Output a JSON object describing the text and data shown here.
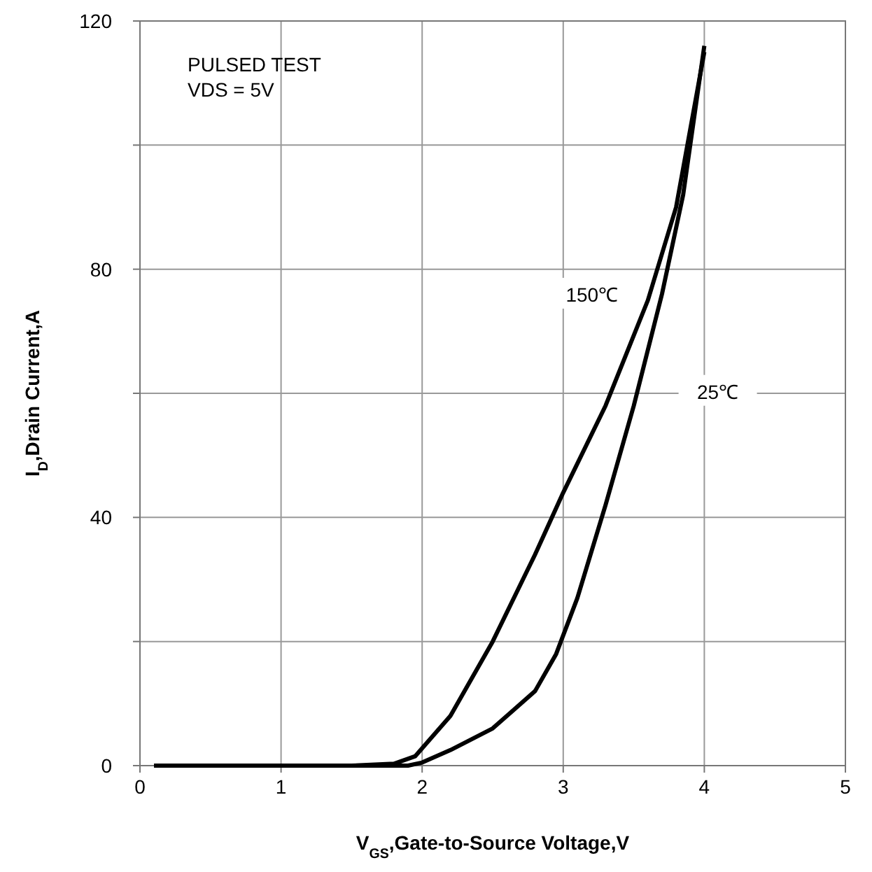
{
  "chart_data": {
    "type": "line",
    "xlabel": "V$_{GS}$,Gate-to-Source Voltage,V",
    "ylabel": "I$_{D}$,Drain Current,A",
    "x": [
      0.1,
      1.5,
      1.8,
      1.95,
      2.2,
      2.5,
      2.8,
      3,
      3.3,
      3.6,
      3.8,
      4
    ],
    "series": [
      {
        "name": "150℃",
        "color": "#000000",
        "values": [
          0,
          0,
          0.3,
          1.5,
          8,
          20,
          34,
          44,
          58,
          75,
          90,
          115
        ]
      },
      {
        "name": "25℃",
        "color": "#000000",
        "x": [
          0.1,
          1.9,
          2.0,
          2.2,
          2.5,
          2.8,
          2.95,
          3.1,
          3.3,
          3.5,
          3.7,
          3.85,
          4
        ],
        "values": [
          0,
          0,
          0.5,
          2.5,
          6,
          12,
          18,
          27,
          42,
          58,
          76,
          92,
          116
        ]
      }
    ],
    "xlim": [
      0,
      5
    ],
    "xticks": [
      0,
      1,
      2,
      3,
      4,
      5
    ],
    "ylim": [
      0,
      120
    ],
    "yticks": [
      0,
      {
        "value": 20,
        "label": null
      },
      40,
      {
        "value": 60,
        "label": null
      },
      80,
      {
        "value": 100,
        "label": null
      },
      120
    ],
    "grid": true,
    "marker": "none",
    "line_style": "solid",
    "annotations": [
      "PULSED TEST",
      "VDS = 5V"
    ]
  }
}
